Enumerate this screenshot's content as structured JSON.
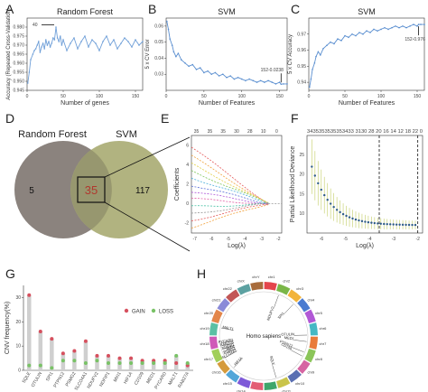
{
  "panel_letters": [
    "A",
    "B",
    "C",
    "D",
    "E",
    "F",
    "G",
    "H"
  ],
  "chart_data": [
    {
      "panel": "A",
      "type": "line",
      "title": "Random Forest",
      "xlabel": "Number of genes",
      "ylabel": "Accuracy (Repeated Cross-Validation)",
      "xlim": [
        0,
        160
      ],
      "ylim": [
        0.945,
        0.985
      ],
      "xticks": [
        "0",
        "50",
        "100",
        "150"
      ],
      "yticks": [
        "0.945",
        "0.950",
        "0.955",
        "0.960",
        "0.965",
        "0.970",
        "0.975",
        "0.980"
      ],
      "color": "#6f9fd8",
      "annotation": {
        "text": "40",
        "x": 40,
        "y": 0.98
      },
      "x": [
        1,
        3,
        5,
        8,
        10,
        12,
        14,
        16,
        18,
        20,
        22,
        24,
        26,
        28,
        30,
        32,
        34,
        36,
        38,
        40,
        42,
        44,
        46,
        48,
        50,
        55,
        60,
        65,
        70,
        75,
        80,
        85,
        90,
        95,
        100,
        105,
        110,
        115,
        120,
        125,
        130,
        135,
        140,
        145,
        150,
        155,
        160
      ],
      "y": [
        0.949,
        0.955,
        0.962,
        0.965,
        0.967,
        0.968,
        0.97,
        0.972,
        0.966,
        0.969,
        0.971,
        0.968,
        0.973,
        0.97,
        0.972,
        0.969,
        0.971,
        0.974,
        0.973,
        0.98,
        0.974,
        0.972,
        0.975,
        0.97,
        0.973,
        0.967,
        0.971,
        0.974,
        0.968,
        0.972,
        0.975,
        0.969,
        0.973,
        0.971,
        0.967,
        0.972,
        0.975,
        0.97,
        0.973,
        0.968,
        0.971,
        0.974,
        0.972,
        0.969,
        0.973,
        0.97,
        0.972
      ]
    },
    {
      "panel": "B",
      "type": "line",
      "title": "SVM",
      "xlabel": "Number of Features",
      "ylabel": "5 x CV Error",
      "xlim": [
        0,
        160
      ],
      "ylim": [
        0.02,
        0.065
      ],
      "xticks": [
        "0",
        "50",
        "100",
        "150"
      ],
      "yticks": [
        "0.03",
        "0.04",
        "0.05",
        "0.06"
      ],
      "color": "#5b8fd0",
      "annotation": {
        "text": "152-0.0238",
        "x": 152,
        "y": 0.0238
      },
      "x": [
        1,
        3,
        5,
        8,
        10,
        13,
        16,
        20,
        25,
        30,
        35,
        40,
        45,
        50,
        55,
        60,
        65,
        70,
        75,
        80,
        85,
        90,
        95,
        100,
        105,
        110,
        115,
        120,
        125,
        130,
        135,
        140,
        145,
        150,
        152,
        155,
        160
      ],
      "y": [
        0.063,
        0.058,
        0.052,
        0.048,
        0.044,
        0.041,
        0.043,
        0.039,
        0.037,
        0.035,
        0.036,
        0.033,
        0.034,
        0.031,
        0.032,
        0.03,
        0.031,
        0.029,
        0.03,
        0.028,
        0.029,
        0.027,
        0.028,
        0.027,
        0.026,
        0.027,
        0.026,
        0.025,
        0.026,
        0.025,
        0.026,
        0.025,
        0.024,
        0.025,
        0.0238,
        0.024,
        0.024
      ]
    },
    {
      "panel": "C",
      "type": "line",
      "title": "SVM",
      "xlabel": "Number of Features",
      "ylabel": "5 x CV Accuracy",
      "xlim": [
        0,
        160
      ],
      "ylim": [
        0.935,
        0.98
      ],
      "xticks": [
        "0",
        "50",
        "100",
        "150"
      ],
      "yticks": [
        "0.94",
        "0.95",
        "0.96",
        "0.97"
      ],
      "color": "#5b8fd0",
      "annotation": {
        "text": "152-0.976",
        "x": 152,
        "y": 0.976
      },
      "x": [
        1,
        3,
        5,
        8,
        10,
        13,
        16,
        20,
        25,
        30,
        35,
        40,
        45,
        50,
        55,
        60,
        65,
        70,
        75,
        80,
        85,
        90,
        95,
        100,
        105,
        110,
        115,
        120,
        125,
        130,
        135,
        140,
        145,
        150,
        152,
        155,
        160
      ],
      "y": [
        0.937,
        0.942,
        0.948,
        0.952,
        0.956,
        0.959,
        0.957,
        0.961,
        0.963,
        0.965,
        0.964,
        0.967,
        0.966,
        0.969,
        0.968,
        0.97,
        0.969,
        0.971,
        0.97,
        0.972,
        0.971,
        0.973,
        0.972,
        0.973,
        0.974,
        0.973,
        0.974,
        0.975,
        0.974,
        0.975,
        0.974,
        0.975,
        0.976,
        0.975,
        0.976,
        0.976,
        0.976
      ]
    },
    {
      "panel": "D",
      "type": "venn",
      "sets": [
        "Random Forest",
        "SVM"
      ],
      "only_a": "5",
      "intersection": "35",
      "only_b": "117",
      "colors": {
        "a": "#7e7670",
        "b": "#a8ab72",
        "overlap": "#b0382e"
      }
    },
    {
      "panel": "E",
      "type": "line",
      "xlabel": "Log(λ)",
      "ylabel": "Coefficients",
      "top_axis": [
        "35",
        "35",
        "35",
        "30",
        "28",
        "10",
        "0"
      ],
      "xticks": [
        "-7",
        "-6",
        "-5",
        "-4",
        "-3",
        "-2"
      ],
      "yticks": [
        "-2",
        "0",
        "2",
        "4",
        "6"
      ],
      "xlim": [
        -7.2,
        -1.8
      ],
      "ylim": [
        -3,
        7
      ]
    },
    {
      "panel": "F",
      "type": "scatter",
      "xlabel": "Log(λ)",
      "ylabel": "Partial Likelihood Deviance",
      "top_axis": "3435353535353433 3130 28 20 16 14 12 18 22 0",
      "xticks": [
        "-6",
        "-5",
        "-4",
        "-3",
        "-2"
      ],
      "yticks": [
        "10",
        "15",
        "20",
        "25"
      ],
      "xlim": [
        -6.6,
        -1.8
      ],
      "ylim": [
        5,
        30
      ],
      "vlines": [
        -3.6,
        -2.0
      ]
    },
    {
      "panel": "G",
      "type": "bar",
      "xlabel": "",
      "ylabel": "CNV frequency(%)",
      "categories": [
        "SQLE",
        "OTULIN",
        "SPI1",
        "PTPN12",
        "PSMG2",
        "SLCO4A1",
        "NDUFV2",
        "NDFIP1",
        "MXI1",
        "HIF1A",
        "CD109",
        "MED1",
        "PYCARD",
        "MALT1",
        "RAB27A"
      ],
      "ylim": [
        0,
        35
      ],
      "yticks": [
        "0",
        "10",
        "20",
        "30"
      ],
      "legend": [
        "GAIN",
        "LOSS"
      ],
      "series": [
        {
          "name": "GAIN",
          "color": "#d6505e",
          "values": [
            31,
            16,
            13,
            7,
            8,
            12,
            6,
            6,
            5,
            5,
            4,
            4,
            4,
            3,
            2
          ]
        },
        {
          "name": "LOSS",
          "color": "#79c266",
          "values": [
            2,
            2,
            1,
            4,
            4,
            3,
            4,
            3,
            3,
            3,
            3,
            3,
            3,
            6,
            3
          ]
        }
      ]
    }
  ],
  "circos": {
    "center_label": "Homo sapiens",
    "genes": [
      "MALT1",
      "SPI1",
      "OTULIN",
      "PYCARD",
      "RAB27A",
      "NDFIP1",
      "MXI1",
      "PTPN12",
      "PSMG2",
      "SLCO4A1",
      "CD109",
      "SQLE",
      "MED1",
      "HIF1A",
      "NDUFV2"
    ],
    "chromosomes": [
      "chr1",
      "chr2",
      "chr3",
      "chr4",
      "chr5",
      "chr6",
      "chr7",
      "chr8",
      "chr9",
      "chr10",
      "chr11",
      "chr12",
      "chr13",
      "chr14",
      "chr15",
      "chr16",
      "chr17",
      "chr18",
      "chr19",
      "chr20",
      "chr21",
      "chr22",
      "chrX",
      "chrY"
    ]
  }
}
